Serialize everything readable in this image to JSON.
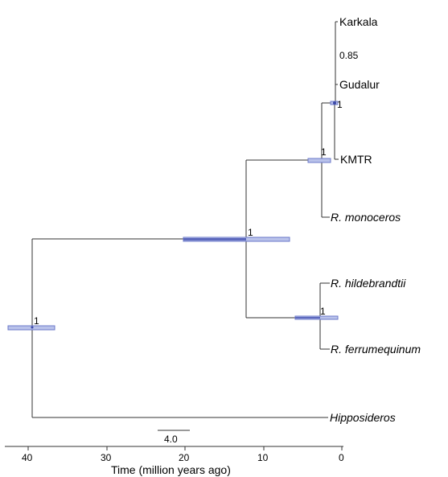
{
  "taxa": {
    "karkala": "Karkala",
    "gudalur": "Gudalur",
    "kmtr": "KMTR",
    "monoceros": "R. monoceros",
    "hildebrandtii": "R. hildebrandtii",
    "ferrumequinum": "R. ferrumequinum",
    "hipposideros": "Hipposideros"
  },
  "support": {
    "karkala_gudalur": "0.85",
    "kmtr_clade": "1",
    "monoceros_clade": "1",
    "root_ingroup": "1",
    "hildebrandtii_ferrumequinum": "1",
    "root": "1"
  },
  "scale_bar": {
    "label": "4.0",
    "length_my": 4.0
  },
  "axis": {
    "title": "Time (million years ago)",
    "ticks": [
      "40",
      "30",
      "20",
      "10",
      "0"
    ]
  },
  "node_ages_my": {
    "root": 39,
    "ingroup": 12,
    "hild_ferr": 2.8,
    "monoceros_clade": 2.5,
    "kmtr_clade": 0.9,
    "karkala_gudalur": 0.7
  },
  "hpd_intervals_my": {
    "root": [
      42,
      36
    ],
    "ingroup": [
      20,
      6.5
    ],
    "hild_ferr": [
      5.8,
      0.5
    ],
    "monoceros_clade": [
      4,
      1.3
    ],
    "kmtr_clade": [
      1.3,
      0.3
    ]
  },
  "colors": {
    "branch": "#333333",
    "hpd_bar": "#b9c2ea",
    "hpd_edge": "#6b78c9"
  }
}
